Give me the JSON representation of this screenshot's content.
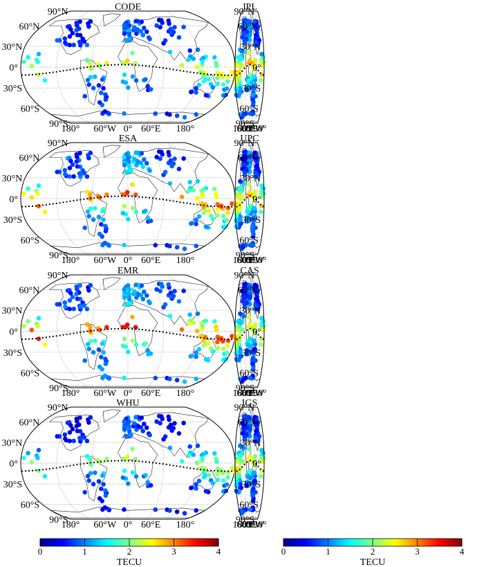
{
  "figure": {
    "panels": [
      {
        "title": "CODE"
      },
      {
        "title": "JPL"
      },
      {
        "title": "ESA"
      },
      {
        "title": "UPC"
      },
      {
        "title": "EMR"
      },
      {
        "title": "CAS"
      },
      {
        "title": "WHU"
      },
      {
        "title": "IGS"
      }
    ],
    "lat_labels": [
      "90°N",
      "60°N",
      "30°N",
      "0°",
      "30°S",
      "60°S",
      "90°S"
    ],
    "lon_labels": [
      "180°",
      "60°W",
      "0°",
      "60°E",
      "180°"
    ],
    "projection": "Robinson",
    "graticule": "dotted gray",
    "overlay": "magnetic equator (dotted black line)"
  },
  "colorbar": {
    "label": "TECU",
    "ticks": [
      "0",
      "1",
      "2",
      "3",
      "4"
    ],
    "range": [
      0,
      4
    ],
    "colormap": "jet",
    "stops": [
      "#00008f",
      "#0000ff",
      "#007fff",
      "#00ffff",
      "#7fff7f",
      "#ffff00",
      "#ff7f00",
      "#ff0000",
      "#7f0000"
    ]
  }
}
